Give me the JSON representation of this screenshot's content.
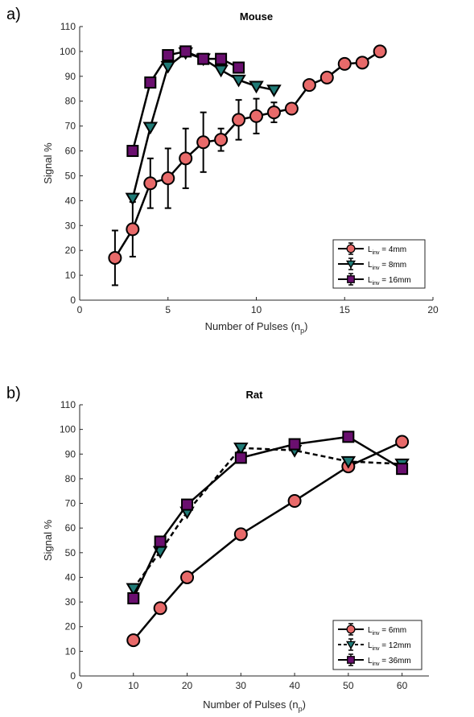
{
  "chart_data": [
    {
      "type": "line",
      "panel_label": "a)",
      "title": "Mouse",
      "xlabel": "Number of Pulses (n",
      "xlabel_sub": "p",
      "xlabel_end": ")",
      "ylabel": "Signal %",
      "xlim": [
        0,
        20
      ],
      "ylim": [
        0,
        110
      ],
      "xticks": [
        0,
        5,
        10,
        15,
        20
      ],
      "yticks": [
        0,
        10,
        20,
        30,
        40,
        50,
        60,
        70,
        80,
        90,
        100,
        110
      ],
      "legend_position": "bottom-right",
      "series": [
        {
          "legend_main": "L",
          "legend_sub": "inv",
          "legend_rest": " = 4mm",
          "marker": "circle",
          "color": "#e86a6a",
          "linestyle": "solid",
          "x": [
            2,
            3,
            4,
            5,
            6,
            7,
            8,
            9,
            10,
            11,
            12,
            13,
            14,
            15,
            16,
            17
          ],
          "y": [
            17,
            28.5,
            47,
            49,
            57,
            63.5,
            64.5,
            72.5,
            74,
            75.5,
            77,
            86.5,
            89.5,
            95,
            95.5,
            100
          ],
          "err": [
            11,
            11,
            10,
            12,
            12,
            12,
            4.5,
            8,
            7,
            4,
            0,
            0,
            0,
            0,
            0,
            0
          ]
        },
        {
          "legend_main": "L",
          "legend_sub": "inv",
          "legend_rest": " = 8mm",
          "marker": "triangle-down",
          "color": "#1f7a76",
          "linestyle": "solid",
          "x": [
            3,
            4,
            5,
            6,
            7,
            8,
            9,
            10,
            11
          ],
          "y": [
            41,
            69.5,
            94,
            99.5,
            97,
            92.5,
            88.5,
            86,
            84.5
          ],
          "err": [
            0,
            0,
            0,
            0,
            0,
            0,
            0,
            0,
            0
          ]
        },
        {
          "legend_main": "L",
          "legend_sub": "inv",
          "legend_rest": " = 16mm",
          "marker": "square",
          "color": "#6a0f6f",
          "linestyle": "solid",
          "x": [
            3,
            4,
            5,
            6,
            7,
            8,
            9
          ],
          "y": [
            60,
            87.5,
            98.5,
            100,
            97,
            97,
            93.5
          ],
          "err": [
            0,
            0,
            0,
            0,
            0,
            0,
            0
          ]
        }
      ]
    },
    {
      "type": "line",
      "panel_label": "b)",
      "title": "Rat",
      "xlabel": "Number of Pulses (n",
      "xlabel_sub": "p",
      "xlabel_end": ")",
      "ylabel": "Signal %",
      "xlim": [
        0,
        65
      ],
      "ylim": [
        0,
        110
      ],
      "xticks": [
        0,
        10,
        20,
        30,
        40,
        50,
        60
      ],
      "yticks": [
        0,
        10,
        20,
        30,
        40,
        50,
        60,
        70,
        80,
        90,
        100,
        110
      ],
      "legend_position": "bottom-right",
      "series": [
        {
          "legend_main": "L",
          "legend_sub": "inv",
          "legend_rest": " = 6mm",
          "marker": "circle",
          "color": "#e86a6a",
          "linestyle": "solid",
          "x": [
            10,
            15,
            20,
            30,
            40,
            50,
            60
          ],
          "y": [
            14.5,
            27.5,
            40,
            57.5,
            71,
            85,
            95
          ],
          "err": [
            0,
            0,
            0,
            0,
            0,
            0,
            0
          ]
        },
        {
          "legend_main": "L",
          "legend_sub": "inv",
          "legend_rest": " = 12mm",
          "marker": "triangle-down",
          "color": "#1f7a76",
          "linestyle": "dashed",
          "x": [
            10,
            15,
            20,
            30,
            40,
            50,
            60
          ],
          "y": [
            35.5,
            50.5,
            66.5,
            92.5,
            91.5,
            87,
            86
          ],
          "err": [
            0,
            0,
            0,
            0,
            0,
            0,
            0
          ]
        },
        {
          "legend_main": "L",
          "legend_sub": "inv",
          "legend_rest": " = 36mm",
          "marker": "square",
          "color": "#6a0f6f",
          "linestyle": "solid",
          "x": [
            10,
            15,
            20,
            30,
            40,
            50,
            60
          ],
          "y": [
            31.5,
            54.5,
            69.5,
            88.5,
            94,
            97,
            84
          ],
          "err": [
            0,
            0,
            0,
            0,
            0,
            0,
            0
          ]
        }
      ]
    }
  ]
}
